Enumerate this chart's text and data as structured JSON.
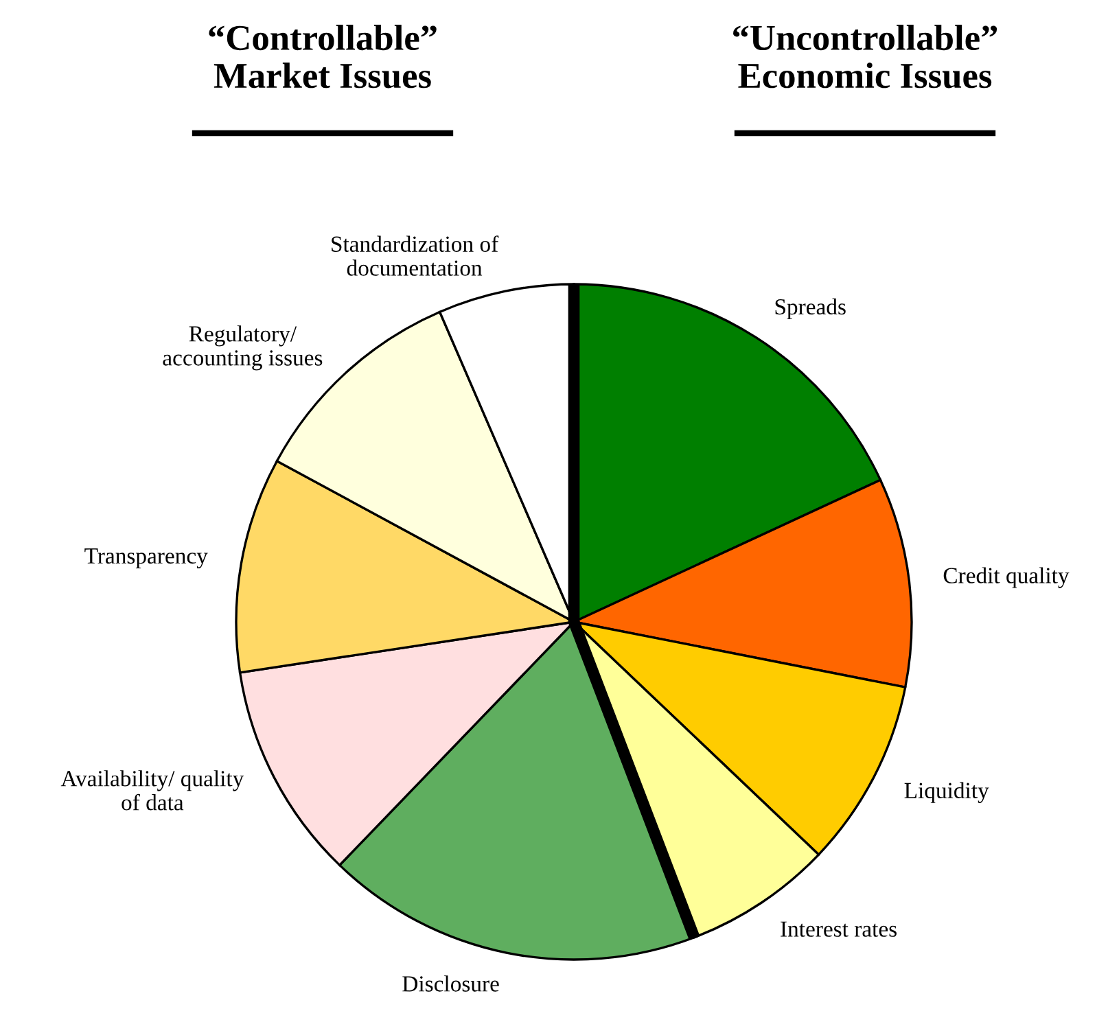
{
  "chart_data": {
    "type": "pie",
    "categories": [
      "Spreads",
      "Credit quality",
      "Liquidity",
      "Interest rates",
      "Disclosure",
      "Availability/ quality\nof data",
      "Transparency",
      "Regulatory/\naccounting issues",
      "Standardization of\ndocumentation"
    ],
    "values": [
      18.1,
      10.0,
      9.0,
      7.1,
      18.0,
      10.4,
      10.3,
      10.6,
      6.5
    ],
    "colors": [
      "#007f00",
      "#ff6600",
      "#ffcc00",
      "#ffff99",
      "#5fae5f",
      "#ffdfe0",
      "#ffd966",
      "#ffffdd",
      "#ffffff"
    ],
    "annotations": [
      "“Controllable”\nMarket Issues",
      "“Uncontrollable”\nEconomic Issues"
    ]
  }
}
